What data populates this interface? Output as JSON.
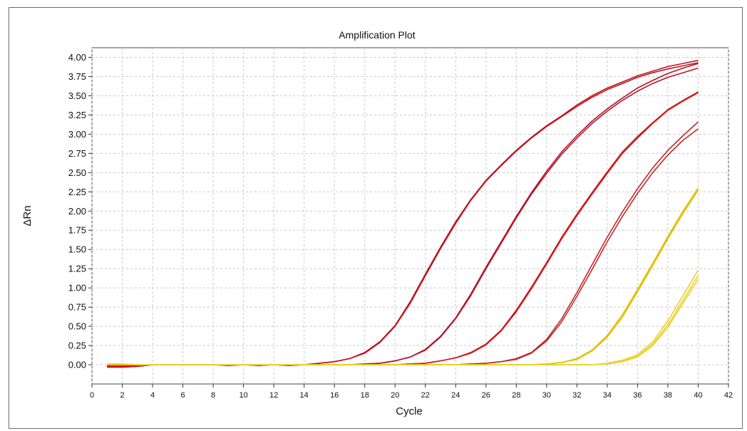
{
  "chart_data": {
    "type": "line",
    "title": "Amplification Plot",
    "xlabel": "Cycle",
    "ylabel": "ΔRn",
    "xlim": [
      0,
      42
    ],
    "ylim": [
      -0.25,
      4.125
    ],
    "xticks": [
      0,
      2,
      4,
      6,
      8,
      10,
      12,
      14,
      16,
      18,
      20,
      22,
      24,
      26,
      28,
      30,
      32,
      34,
      36,
      38,
      40,
      42
    ],
    "yticks": [
      0.0,
      0.25,
      0.5,
      0.75,
      1.0,
      1.25,
      1.5,
      1.75,
      2.0,
      2.25,
      2.5,
      2.75,
      3.0,
      3.25,
      3.5,
      3.75,
      4.0
    ],
    "ytick_labels": [
      "0.00",
      "0.25",
      "0.50",
      "0.75",
      "1.00",
      "1.25",
      "1.50",
      "1.75",
      "2.00",
      "2.25",
      "2.50",
      "2.75",
      "3.00",
      "3.25",
      "3.50",
      "3.75",
      "4.00"
    ],
    "grid": true,
    "x": [
      1,
      2,
      3,
      4,
      5,
      6,
      7,
      8,
      9,
      10,
      11,
      12,
      13,
      14,
      15,
      16,
      17,
      18,
      19,
      20,
      21,
      22,
      23,
      24,
      25,
      26,
      27,
      28,
      29,
      30,
      31,
      32,
      33,
      34,
      35,
      36,
      37,
      38,
      39,
      40
    ],
    "series": [
      {
        "color": "#c1121f",
        "values": [
          -0.03,
          -0.03,
          -0.02,
          0,
          0,
          0,
          0,
          0,
          -0.01,
          0,
          -0.01,
          0,
          -0.01,
          0,
          0.02,
          0.04,
          0.08,
          0.16,
          0.3,
          0.51,
          0.82,
          1.18,
          1.53,
          1.86,
          2.15,
          2.4,
          2.6,
          2.79,
          2.96,
          3.11,
          3.24,
          3.38,
          3.5,
          3.6,
          3.68,
          3.76,
          3.82,
          3.88,
          3.92,
          3.96
        ]
      },
      {
        "color": "#c1121f",
        "values": [
          -0.03,
          -0.03,
          -0.02,
          0,
          0,
          0,
          0,
          0,
          -0.01,
          0,
          -0.01,
          0,
          -0.01,
          0,
          0.02,
          0.04,
          0.08,
          0.15,
          0.29,
          0.5,
          0.8,
          1.16,
          1.51,
          1.84,
          2.14,
          2.39,
          2.59,
          2.78,
          2.95,
          3.1,
          3.23,
          3.36,
          3.48,
          3.58,
          3.66,
          3.74,
          3.8,
          3.85,
          3.89,
          3.93
        ]
      },
      {
        "color": "#b5142a",
        "values": [
          -0.02,
          -0.03,
          -0.02,
          0,
          0,
          0,
          0,
          0,
          0,
          0,
          0,
          0,
          0,
          0,
          0,
          0,
          0,
          0.01,
          0.02,
          0.05,
          0.1,
          0.2,
          0.37,
          0.61,
          0.92,
          1.27,
          1.6,
          1.93,
          2.24,
          2.52,
          2.77,
          2.98,
          3.17,
          3.33,
          3.47,
          3.6,
          3.7,
          3.79,
          3.86,
          3.92
        ]
      },
      {
        "color": "#b5142a",
        "values": [
          -0.02,
          -0.03,
          -0.02,
          0,
          0,
          0,
          0,
          0,
          0,
          0,
          0,
          0,
          0,
          0,
          0,
          0,
          0,
          0.01,
          0.02,
          0.05,
          0.1,
          0.19,
          0.36,
          0.6,
          0.9,
          1.25,
          1.58,
          1.91,
          2.22,
          2.49,
          2.74,
          2.95,
          3.14,
          3.3,
          3.44,
          3.56,
          3.66,
          3.74,
          3.8,
          3.86
        ]
      },
      {
        "color": "#d11a1a",
        "values": [
          -0.02,
          -0.02,
          -0.01,
          0,
          0,
          0,
          0,
          0,
          0,
          0,
          0,
          0,
          0,
          0,
          0,
          0,
          0,
          0,
          0,
          0,
          0.01,
          0.02,
          0.05,
          0.09,
          0.16,
          0.27,
          0.45,
          0.71,
          1.01,
          1.33,
          1.66,
          1.96,
          2.24,
          2.51,
          2.77,
          2.97,
          3.15,
          3.32,
          3.44,
          3.55
        ]
      },
      {
        "color": "#d11a1a",
        "values": [
          -0.02,
          -0.02,
          -0.01,
          0,
          0,
          0,
          0,
          0,
          0,
          0,
          0,
          0,
          0,
          0,
          0,
          0,
          0,
          0,
          0,
          0,
          0.01,
          0.02,
          0.05,
          0.09,
          0.15,
          0.26,
          0.44,
          0.69,
          0.99,
          1.31,
          1.64,
          1.94,
          2.22,
          2.49,
          2.75,
          2.95,
          3.14,
          3.31,
          3.43,
          3.54
        ]
      },
      {
        "color": "#c2282a",
        "values": [
          -0.01,
          -0.01,
          -0.01,
          0,
          0,
          0,
          0,
          0,
          0,
          0,
          0,
          0,
          0,
          0,
          0,
          0,
          0,
          0,
          0,
          0,
          0,
          0,
          0,
          0,
          0.01,
          0.02,
          0.04,
          0.08,
          0.16,
          0.33,
          0.6,
          0.94,
          1.3,
          1.66,
          1.99,
          2.29,
          2.56,
          2.79,
          2.98,
          3.16
        ]
      },
      {
        "color": "#c2282a",
        "values": [
          -0.01,
          -0.01,
          -0.01,
          0,
          0,
          0,
          0,
          0,
          0,
          0,
          0,
          0,
          0,
          0,
          0,
          0,
          0,
          0,
          0,
          0,
          0,
          0,
          0,
          0,
          0.01,
          0.02,
          0.04,
          0.07,
          0.15,
          0.31,
          0.56,
          0.89,
          1.24,
          1.6,
          1.93,
          2.23,
          2.5,
          2.73,
          2.92,
          3.07
        ]
      },
      {
        "color": "#e0c000",
        "values": [
          0,
          0,
          0,
          0,
          0,
          0,
          0,
          0,
          0,
          0,
          0,
          0,
          0,
          0,
          0,
          0,
          0,
          0,
          0,
          0,
          0,
          0,
          0,
          0,
          0,
          0,
          0,
          0,
          0,
          0.01,
          0.03,
          0.08,
          0.19,
          0.38,
          0.65,
          0.98,
          1.32,
          1.67,
          2,
          2.3
        ]
      },
      {
        "color": "#e0c000",
        "values": [
          0,
          0,
          0,
          0,
          0,
          0,
          0,
          0,
          0,
          0,
          0,
          0,
          0,
          0,
          0,
          0,
          0,
          0,
          0,
          0,
          0,
          0,
          0,
          0,
          0,
          0,
          0,
          0,
          0,
          0.01,
          0.03,
          0.07,
          0.18,
          0.36,
          0.62,
          0.95,
          1.29,
          1.64,
          1.97,
          2.27
        ]
      },
      {
        "color": "#ead22a",
        "values": [
          0.01,
          0.01,
          0,
          0,
          0,
          0,
          0,
          0,
          0,
          0,
          0,
          0,
          0,
          0,
          0,
          0,
          0,
          0,
          0,
          0,
          0,
          0,
          0,
          0,
          0,
          0,
          0,
          0,
          0,
          0,
          0,
          0,
          0,
          0.02,
          0.06,
          0.13,
          0.3,
          0.57,
          0.9,
          1.23
        ]
      },
      {
        "color": "#ead22a",
        "values": [
          0.01,
          0.01,
          0,
          0,
          0,
          0,
          0,
          0,
          0,
          0,
          0,
          0,
          0,
          0,
          0,
          0,
          0,
          0,
          0,
          0,
          0,
          0,
          0,
          0,
          0,
          0,
          0,
          0,
          0,
          0,
          0,
          0,
          0,
          0.02,
          0.05,
          0.11,
          0.27,
          0.52,
          0.84,
          1.16
        ]
      },
      {
        "color": "#ead22a",
        "values": [
          0.01,
          0.01,
          0,
          0,
          0,
          0,
          0,
          0,
          0,
          0,
          0,
          0,
          0,
          0,
          0,
          0,
          0,
          0,
          0,
          0,
          0,
          0,
          0,
          0,
          0,
          0,
          0,
          0,
          0,
          0,
          0,
          0,
          0,
          0.01,
          0.04,
          0.1,
          0.25,
          0.49,
          0.8,
          1.11
        ]
      }
    ]
  }
}
